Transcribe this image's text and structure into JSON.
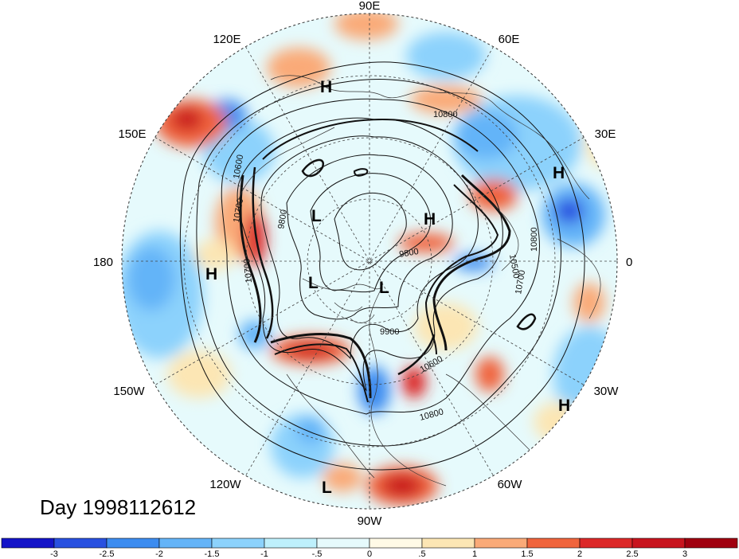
{
  "title": "Day 1998112612",
  "longitude_labels": [
    {
      "text": "90E",
      "lon": 90
    },
    {
      "text": "60E",
      "lon": 60
    },
    {
      "text": "30E",
      "lon": 30
    },
    {
      "text": "0",
      "lon": 0
    },
    {
      "text": "30W",
      "lon": -30
    },
    {
      "text": "60W",
      "lon": -60
    },
    {
      "text": "90W",
      "lon": -90
    },
    {
      "text": "120W",
      "lon": -120
    },
    {
      "text": "150W",
      "lon": -150
    },
    {
      "text": "180",
      "lon": 180
    },
    {
      "text": "150E",
      "lon": 150
    },
    {
      "text": "120E",
      "lon": 120
    }
  ],
  "pressure_centers": [
    {
      "text": "H"
    },
    {
      "text": "H"
    },
    {
      "text": "H"
    },
    {
      "text": "H"
    },
    {
      "text": "H"
    },
    {
      "text": "L"
    },
    {
      "text": "L"
    },
    {
      "text": "L"
    },
    {
      "text": "L"
    }
  ],
  "contour_labels": [
    "10800",
    "10600",
    "10700",
    "9800",
    "9800",
    "10500",
    "10800",
    "10700",
    "9900",
    "10600",
    "10800",
    "10700"
  ],
  "colorbar": {
    "colors": [
      "#1414c8",
      "#2850e0",
      "#3c8cf0",
      "#64b4f8",
      "#8cd2fc",
      "#bef0fc",
      "#e6fafc",
      "#fffae6",
      "#fce6b4",
      "#faaa78",
      "#f0643c",
      "#dc2828",
      "#c8141e",
      "#a0000f"
    ],
    "tick_labels": [
      "-3",
      "-2.5",
      "-2",
      "-1.5",
      "-1",
      "-.5",
      "0",
      ".5",
      "1",
      "1.5",
      "2",
      "2.5",
      "3"
    ]
  }
}
